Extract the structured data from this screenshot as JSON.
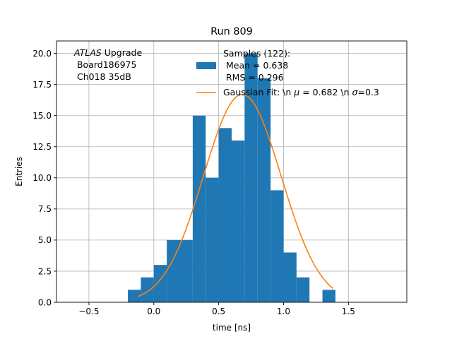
{
  "chart_data": {
    "type": "bar",
    "title": "Run 809",
    "xlabel": "time [ns]",
    "ylabel": "Entries",
    "xlim": [
      -0.75,
      1.95
    ],
    "ylim": [
      0,
      21
    ],
    "grid": true,
    "xticks": [
      -0.5,
      0.0,
      0.5,
      1.0,
      1.5
    ],
    "xtick_labels": [
      "−0.5",
      "0.0",
      "0.5",
      "1.0",
      "1.5"
    ],
    "yticks": [
      0,
      2.5,
      5,
      7.5,
      10,
      12.5,
      15,
      17.5,
      20
    ],
    "ytick_labels": [
      "0.0",
      "2.5",
      "5.0",
      "7.5",
      "10.0",
      "12.5",
      "15.0",
      "17.5",
      "20.0"
    ],
    "histogram": {
      "bin_edges": [
        -0.2,
        -0.1,
        0.0,
        0.1,
        0.2,
        0.3,
        0.4,
        0.5,
        0.6,
        0.7,
        0.8,
        0.9,
        1.0,
        1.1,
        1.2,
        1.3,
        1.4,
        1.5
      ],
      "counts": [
        1,
        2,
        3,
        5,
        5,
        15,
        10,
        14,
        13,
        20,
        18,
        9,
        4,
        2,
        0,
        1,
        0
      ],
      "color": "#1f77b4"
    },
    "fit": {
      "mu": 0.682,
      "sigma": 0.3,
      "amplitude": 16.7,
      "x_range": [
        -0.12,
        1.38
      ],
      "color": "#ff7f0e"
    },
    "annotation": {
      "atlas": "ATLAS",
      "line1_rest": " Upgrade",
      "line2": " Board186975",
      "line3": " Ch018 35dB"
    },
    "legend": {
      "location": "top-right",
      "samples_line1": "Samples (122):",
      "samples_line2": " Mean = 0.638",
      "samples_line3": " RMS = 0.296",
      "fit_label_a": "Gaussian Fit: \\n ",
      "fit_mu_sym": "μ",
      "fit_label_b": " = 0.682 \\n ",
      "fit_sigma_sym": "σ",
      "fit_label_c": "=0.3"
    }
  }
}
